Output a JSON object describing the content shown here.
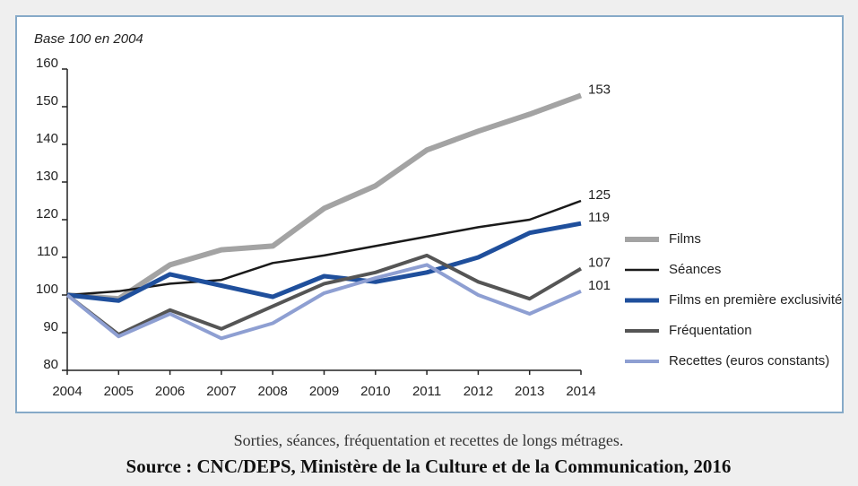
{
  "chart_data": {
    "type": "line",
    "y_label": "Base 100 en 2004",
    "categories": [
      "2004",
      "2005",
      "2006",
      "2007",
      "2008",
      "2009",
      "2010",
      "2011",
      "2012",
      "2013",
      "2014"
    ],
    "ylim": [
      80,
      160
    ],
    "yticks": [
      80,
      90,
      100,
      110,
      120,
      130,
      140,
      150,
      160
    ],
    "grid": false,
    "legend": "right",
    "series": [
      {
        "name": "Films",
        "color": "#a3a3a3",
        "width": 6,
        "values": [
          100,
          99,
          108,
          112,
          113,
          123,
          129,
          138.5,
          143.5,
          148,
          153
        ]
      },
      {
        "name": "Séances",
        "color": "#1a1a1a",
        "width": 2.5,
        "values": [
          100,
          101,
          103,
          104,
          108.5,
          110.5,
          113,
          115.5,
          118,
          120,
          125
        ]
      },
      {
        "name": "Films en première exclusivité",
        "color": "#1f4f9c",
        "width": 5,
        "values": [
          100,
          98.5,
          105.5,
          102.5,
          99.5,
          105,
          103.5,
          106,
          110,
          116.5,
          119
        ]
      },
      {
        "name": "Fréquentation",
        "color": "#555555",
        "width": 4,
        "values": [
          100,
          89.5,
          96,
          91,
          97,
          103,
          106,
          110.5,
          103.5,
          99,
          107
        ]
      },
      {
        "name": "Recettes (euros constants)",
        "color": "#8e9fd2",
        "width": 4,
        "values": [
          100,
          89,
          95,
          88.5,
          92.5,
          100.5,
          104.5,
          108,
          100,
          95,
          101
        ]
      }
    ],
    "end_labels": true,
    "caption": "Sorties, séances, fréquentation et recettes de longs métrages.",
    "source": "Source : CNC/DEPS, Ministère de la Culture et de la Communication, 2016"
  }
}
